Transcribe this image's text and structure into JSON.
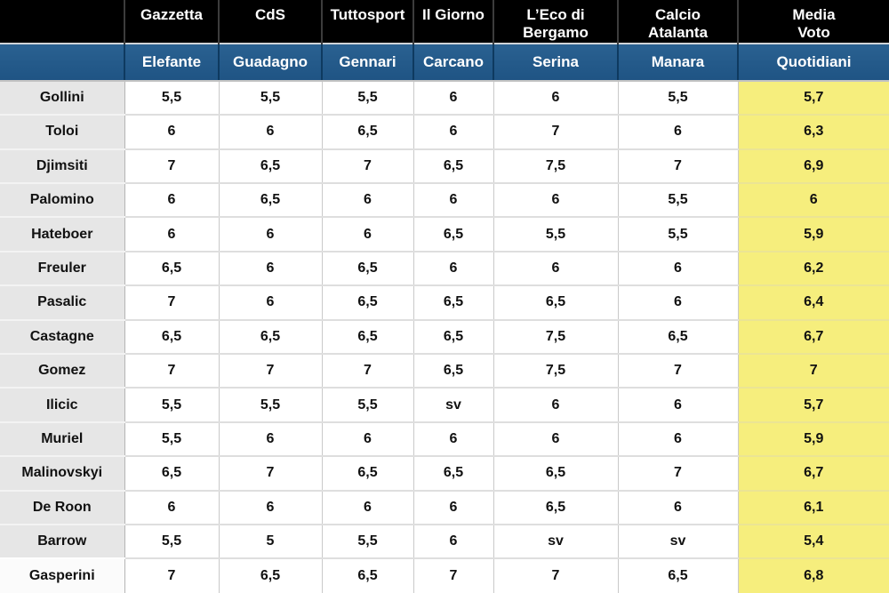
{
  "chart_data": {
    "type": "table",
    "columns": [
      "",
      "Gazzetta",
      "CdS",
      "Tuttosport",
      "Il Giorno",
      "L’Eco di\nBergamo",
      "Calcio\nAtalanta",
      "Media\nVoto"
    ],
    "subcolumns": [
      "",
      "Elefante",
      "Guadagno",
      "Gennari",
      "Carcano",
      "Serina",
      "Manara",
      "Quotidiani"
    ],
    "rows": [
      {
        "name": "Gollini",
        "votes": [
          "5,5",
          "5,5",
          "5,5",
          "6",
          "6",
          "5,5"
        ],
        "media": "5,7"
      },
      {
        "name": "Toloi",
        "votes": [
          "6",
          "6",
          "6,5",
          "6",
          "7",
          "6"
        ],
        "media": "6,3"
      },
      {
        "name": "Djimsiti",
        "votes": [
          "7",
          "6,5",
          "7",
          "6,5",
          "7,5",
          "7"
        ],
        "media": "6,9"
      },
      {
        "name": "Palomino",
        "votes": [
          "6",
          "6,5",
          "6",
          "6",
          "6",
          "5,5"
        ],
        "media": "6"
      },
      {
        "name": "Hateboer",
        "votes": [
          "6",
          "6",
          "6",
          "6,5",
          "5,5",
          "5,5"
        ],
        "media": "5,9"
      },
      {
        "name": "Freuler",
        "votes": [
          "6,5",
          "6",
          "6,5",
          "6",
          "6",
          "6"
        ],
        "media": "6,2"
      },
      {
        "name": "Pasalic",
        "votes": [
          "7",
          "6",
          "6,5",
          "6,5",
          "6,5",
          "6"
        ],
        "media": "6,4"
      },
      {
        "name": "Castagne",
        "votes": [
          "6,5",
          "6,5",
          "6,5",
          "6,5",
          "7,5",
          "6,5"
        ],
        "media": "6,7"
      },
      {
        "name": "Gomez",
        "votes": [
          "7",
          "7",
          "7",
          "6,5",
          "7,5",
          "7"
        ],
        "media": "7"
      },
      {
        "name": "Ilicic",
        "votes": [
          "5,5",
          "5,5",
          "5,5",
          "sv",
          "6",
          "6"
        ],
        "media": "5,7"
      },
      {
        "name": "Muriel",
        "votes": [
          "5,5",
          "6",
          "6",
          "6",
          "6",
          "6"
        ],
        "media": "5,9"
      },
      {
        "name": "Malinovskyi",
        "votes": [
          "6,5",
          "7",
          "6,5",
          "6,5",
          "6,5",
          "7"
        ],
        "media": "6,7"
      },
      {
        "name": "De Roon",
        "votes": [
          "6",
          "6",
          "6",
          "6",
          "6,5",
          "6"
        ],
        "media": "6,1"
      },
      {
        "name": "Barrow",
        "votes": [
          "5,5",
          "5",
          "5,5",
          "6",
          "sv",
          "sv"
        ],
        "media": "5,4"
      },
      {
        "name": "Gasperini",
        "votes": [
          "7",
          "6,5",
          "6,5",
          "7",
          "7",
          "6,5"
        ],
        "media": "6,8"
      }
    ]
  },
  "colors": {
    "header_bg": "#000000",
    "header_text": "#ffffff",
    "subheader_bg": "#1f5484",
    "subheader_text": "#ffffff",
    "name_col_bg": "#e6e6e6",
    "media_col_bg": "#f6ee7d",
    "body_text": "#111111"
  }
}
